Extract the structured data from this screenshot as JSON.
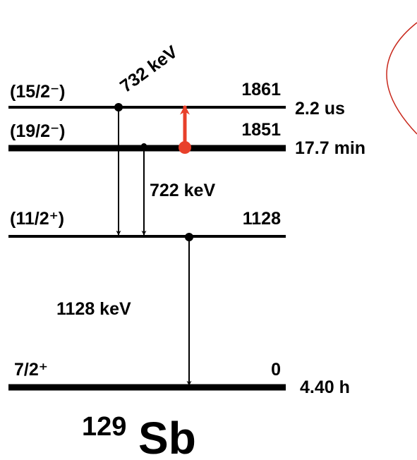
{
  "levels": [
    {
      "spin": "(15/2⁻)",
      "energy": "1861",
      "half_life": "2.2 us"
    },
    {
      "spin": "(19/2⁻)",
      "energy": "1851",
      "half_life": "17.7 min"
    },
    {
      "spin": "(11/2⁺)",
      "energy": "1128"
    },
    {
      "spin": "7/2⁺",
      "energy": "0",
      "half_life": "4.40 h"
    }
  ],
  "transitions": [
    {
      "label": "732 keV"
    },
    {
      "label": "722 keV"
    },
    {
      "label": "1128 keV"
    }
  ],
  "nucleus": {
    "mass": "129",
    "symbol": "Sb"
  }
}
